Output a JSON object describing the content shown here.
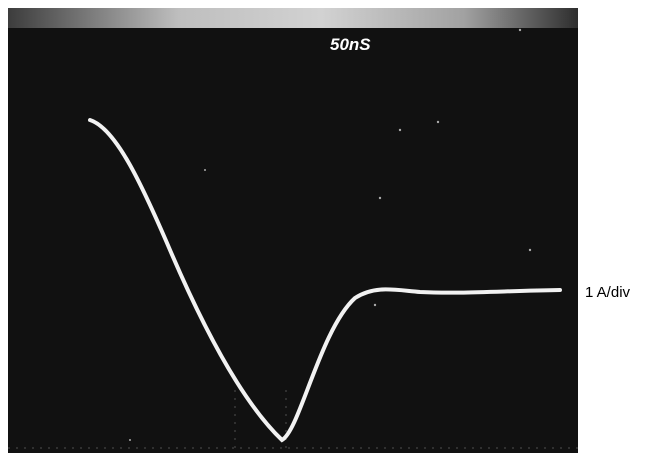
{
  "screen": {
    "timebase": "50nS"
  },
  "scale_label": "1 A/div"
}
